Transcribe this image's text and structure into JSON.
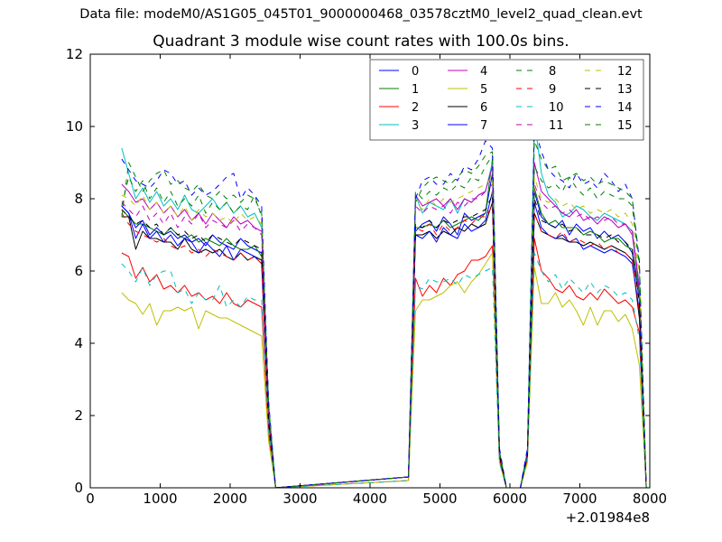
{
  "suptitle": "Data file: modeM0/AS1G05_045T01_9000000468_03578cztM0_level2_quad_clean.evt",
  "chart_data": {
    "type": "line",
    "title": "Quadrant 3 module wise count rates with 100.0s bins.",
    "xlabel": "",
    "ylabel": "",
    "x_offset_label": "+2.01984e8",
    "xlim": [
      0,
      8000
    ],
    "ylim": [
      0,
      12
    ],
    "xticks": [
      "0",
      "1000",
      "2000",
      "3000",
      "4000",
      "5000",
      "6000",
      "7000",
      "8000"
    ],
    "yticks": [
      "0",
      "2",
      "4",
      "6",
      "8",
      "10",
      "12"
    ],
    "grid": false,
    "legend_position": "upper right",
    "legend_columns": 4,
    "x": [
      450,
      550,
      650,
      750,
      850,
      950,
      1050,
      1150,
      1250,
      1350,
      1450,
      1550,
      1650,
      1750,
      1850,
      1950,
      2050,
      2150,
      2250,
      2350,
      2450,
      2550,
      2650,
      4550,
      4650,
      4750,
      4850,
      4950,
      5050,
      5150,
      5250,
      5350,
      5450,
      5550,
      5650,
      5750,
      5850,
      5950,
      6050,
      6150,
      6250,
      6350,
      6450,
      6550,
      6650,
      6750,
      6850,
      6950,
      7050,
      7150,
      7250,
      7350,
      7450,
      7550,
      7650,
      7750,
      7850,
      7950
    ],
    "series": [
      {
        "name": "0",
        "color": "#0000ff",
        "style": "solid",
        "values": [
          7.8,
          7.6,
          7.2,
          7.4,
          7.0,
          7.2,
          7.0,
          7.1,
          6.9,
          7.0,
          6.8,
          6.9,
          6.7,
          7.0,
          6.8,
          6.7,
          6.6,
          6.9,
          6.7,
          6.6,
          6.5,
          1.8,
          0,
          0.3,
          7.1,
          7.3,
          7.4,
          7.1,
          7.5,
          7.3,
          7.0,
          7.6,
          7.4,
          7.5,
          7.6,
          8.7,
          0.9,
          0,
          0,
          0,
          0.9,
          8.2,
          7.5,
          7.3,
          7.2,
          7.4,
          7.0,
          7.3,
          7.1,
          7.2,
          6.9,
          7.1,
          6.9,
          7.0,
          6.8,
          6.5,
          5.2,
          0
        ]
      },
      {
        "name": "1",
        "color": "#008000",
        "style": "solid",
        "values": [
          7.7,
          7.5,
          7.3,
          7.3,
          7.2,
          7.1,
          7.0,
          7.2,
          7.0,
          6.9,
          7.0,
          6.8,
          6.9,
          6.8,
          6.7,
          6.9,
          6.7,
          6.6,
          6.6,
          6.7,
          6.4,
          2.0,
          0,
          0.3,
          7.2,
          7.2,
          7.3,
          7.2,
          7.4,
          7.2,
          7.3,
          7.4,
          7.5,
          7.4,
          7.6,
          9.1,
          1.0,
          0,
          0,
          0,
          0.9,
          8.3,
          7.6,
          7.3,
          7.4,
          7.2,
          7.2,
          7.2,
          7.0,
          7.1,
          7.0,
          6.8,
          6.9,
          6.9,
          6.7,
          6.6,
          5.4,
          0
        ]
      },
      {
        "name": "2",
        "color": "#ff0000",
        "style": "solid",
        "values": [
          6.5,
          6.4,
          5.8,
          6.1,
          5.7,
          5.9,
          5.5,
          5.6,
          5.4,
          5.6,
          5.3,
          5.4,
          5.2,
          5.3,
          5.1,
          5.4,
          5.1,
          5.0,
          5.2,
          5.1,
          5.0,
          1.5,
          0,
          0.2,
          5.8,
          5.3,
          5.6,
          5.4,
          5.8,
          5.6,
          5.9,
          6.0,
          6.3,
          6.3,
          6.4,
          6.7,
          0.8,
          0,
          0,
          0,
          0.8,
          6.9,
          6.0,
          5.8,
          5.5,
          5.4,
          5.6,
          5.3,
          5.2,
          5.4,
          5.2,
          5.5,
          5.3,
          5.1,
          5.2,
          5.0,
          4.3,
          0
        ]
      },
      {
        "name": "3",
        "color": "#00bfbf",
        "style": "solid",
        "values": [
          9.4,
          8.7,
          8.0,
          8.3,
          7.9,
          8.2,
          7.8,
          8.0,
          7.7,
          8.1,
          7.7,
          7.6,
          7.8,
          8.0,
          7.7,
          7.9,
          7.6,
          7.8,
          7.5,
          7.6,
          7.2,
          2.3,
          0,
          0.3,
          8.1,
          7.6,
          7.9,
          7.8,
          7.7,
          8.0,
          7.6,
          8.0,
          7.9,
          8.1,
          8.2,
          9.0,
          1.0,
          0,
          0,
          0,
          1.0,
          10.2,
          8.7,
          8.1,
          7.9,
          7.5,
          7.6,
          7.8,
          7.7,
          7.5,
          7.4,
          7.6,
          7.5,
          7.4,
          7.3,
          7.1,
          5.6,
          0
        ]
      },
      {
        "name": "4",
        "color": "#bf00bf",
        "style": "solid",
        "values": [
          8.4,
          8.2,
          7.9,
          8.0,
          7.7,
          7.9,
          7.6,
          7.8,
          7.5,
          7.7,
          7.4,
          7.6,
          7.3,
          7.6,
          7.4,
          7.2,
          7.5,
          7.3,
          7.4,
          7.2,
          7.1,
          2.1,
          0,
          0.3,
          8.1,
          7.8,
          7.9,
          8.0,
          7.8,
          8.0,
          7.7,
          8.0,
          7.9,
          8.1,
          8.2,
          8.9,
          1.0,
          0,
          0,
          0,
          1.0,
          9.0,
          8.2,
          8.0,
          7.8,
          7.6,
          7.5,
          7.7,
          7.4,
          7.5,
          7.3,
          7.5,
          7.4,
          7.2,
          7.3,
          7.0,
          5.5,
          0
        ]
      },
      {
        "name": "5",
        "color": "#bfbf00",
        "style": "solid",
        "values": [
          5.4,
          5.2,
          5.1,
          4.8,
          5.1,
          4.5,
          4.9,
          4.9,
          5.0,
          4.9,
          5.0,
          4.4,
          4.9,
          4.8,
          4.7,
          4.7,
          4.6,
          4.5,
          4.4,
          4.3,
          4.2,
          1.3,
          0,
          0.2,
          4.9,
          5.2,
          5.2,
          5.3,
          5.4,
          5.6,
          5.7,
          5.4,
          5.7,
          5.9,
          6.2,
          6.5,
          0.7,
          0,
          0,
          0,
          0.7,
          6.1,
          5.1,
          5.1,
          5.4,
          5.0,
          5.2,
          4.9,
          4.5,
          5.0,
          4.5,
          4.9,
          4.9,
          4.6,
          4.8,
          4.4,
          3.4,
          0
        ]
      },
      {
        "name": "6",
        "color": "#000000",
        "style": "solid",
        "values": [
          7.5,
          7.5,
          6.6,
          7.1,
          6.9,
          6.9,
          6.8,
          6.8,
          6.6,
          6.9,
          6.6,
          6.5,
          6.6,
          6.5,
          6.6,
          6.4,
          6.3,
          6.5,
          6.3,
          6.4,
          6.3,
          1.8,
          0,
          0.3,
          7.0,
          7.0,
          7.1,
          6.9,
          7.1,
          7.0,
          7.2,
          7.1,
          7.3,
          7.2,
          7.3,
          7.9,
          0.9,
          0,
          0,
          0,
          0.9,
          7.6,
          7.1,
          7.0,
          6.9,
          6.9,
          6.8,
          6.8,
          6.7,
          6.8,
          6.7,
          6.6,
          6.7,
          6.6,
          6.5,
          6.3,
          4.7,
          0
        ]
      },
      {
        "name": "7",
        "color": "#0000ff",
        "style": "solid",
        "values": [
          7.8,
          7.6,
          6.9,
          7.3,
          6.9,
          7.1,
          6.8,
          7.0,
          6.7,
          6.9,
          6.8,
          6.5,
          6.8,
          6.6,
          6.4,
          6.7,
          6.3,
          6.6,
          6.5,
          6.4,
          6.2,
          1.8,
          0,
          0.3,
          7.0,
          6.9,
          7.1,
          6.8,
          7.2,
          7.0,
          6.9,
          7.3,
          7.1,
          7.2,
          7.4,
          8.2,
          0.9,
          0,
          0,
          0,
          0.9,
          7.9,
          7.2,
          7.0,
          6.9,
          7.0,
          6.8,
          6.9,
          6.6,
          6.7,
          6.6,
          6.5,
          6.6,
          6.5,
          6.4,
          6.2,
          4.9,
          0
        ]
      },
      {
        "name": "8",
        "color": "#008000",
        "style": "dashed",
        "values": [
          7.8,
          8.6,
          8.2,
          8.5,
          8.0,
          8.3,
          7.9,
          8.2,
          7.8,
          8.0,
          7.8,
          8.1,
          7.6,
          7.9,
          7.7,
          7.9,
          7.6,
          7.8,
          7.7,
          8.1,
          7.5,
          2.3,
          0,
          0.3,
          8.2,
          8.0,
          8.2,
          8.1,
          8.3,
          8.2,
          8.4,
          8.3,
          8.6,
          8.5,
          8.9,
          9.2,
          1.0,
          0,
          0,
          0,
          1.0,
          8.9,
          8.5,
          8.3,
          8.4,
          8.2,
          8.6,
          8.3,
          8.1,
          8.3,
          8.0,
          8.2,
          8.1,
          8.0,
          8.0,
          7.8,
          6.1,
          0
        ]
      },
      {
        "name": "9",
        "color": "#ff0000",
        "style": "dashed",
        "values": [
          7.6,
          7.3,
          7.1,
          7.0,
          6.9,
          6.8,
          6.9,
          6.7,
          6.6,
          6.7,
          6.5,
          6.6,
          6.4,
          6.6,
          6.5,
          6.4,
          6.3,
          6.5,
          6.3,
          6.4,
          6.2,
          1.8,
          0,
          0.3,
          7.2,
          7.1,
          7.3,
          7.0,
          7.3,
          7.1,
          7.2,
          7.4,
          7.3,
          7.5,
          7.5,
          7.8,
          0.9,
          0,
          0,
          0,
          0.9,
          7.6,
          7.1,
          7.0,
          6.9,
          7.1,
          6.8,
          6.9,
          6.8,
          6.7,
          6.8,
          6.6,
          6.7,
          6.5,
          6.5,
          6.3,
          4.9,
          0
        ]
      },
      {
        "name": "10",
        "color": "#00bfbf",
        "style": "dashed",
        "values": [
          6.2,
          6.0,
          5.7,
          6.1,
          5.6,
          5.9,
          6.0,
          6.0,
          5.4,
          5.5,
          5.1,
          5.4,
          5.2,
          5.2,
          5.6,
          5.0,
          5.2,
          5.0,
          5.3,
          5.2,
          5.2,
          1.6,
          0,
          0.2,
          5.6,
          5.5,
          5.8,
          5.7,
          5.7,
          5.8,
          5.6,
          5.9,
          5.8,
          5.9,
          6.0,
          6.1,
          0.7,
          0,
          0,
          0,
          0.8,
          6.5,
          6.0,
          5.7,
          5.9,
          5.5,
          5.8,
          5.6,
          5.4,
          5.7,
          5.4,
          5.6,
          5.5,
          5.3,
          5.4,
          5.2,
          4.1,
          0
        ]
      },
      {
        "name": "11",
        "color": "#bf00bf",
        "style": "dashed",
        "values": [
          7.9,
          7.7,
          7.5,
          7.8,
          7.4,
          7.6,
          7.3,
          7.6,
          7.2,
          7.5,
          7.3,
          7.6,
          7.2,
          7.4,
          7.3,
          7.2,
          7.4,
          7.1,
          7.3,
          7.2,
          7.0,
          2.1,
          0,
          0.3,
          7.8,
          7.6,
          7.8,
          7.7,
          7.8,
          7.6,
          7.9,
          7.8,
          8.0,
          8.0,
          8.2,
          8.4,
          1.0,
          0,
          0,
          0,
          1.0,
          8.4,
          7.9,
          7.7,
          7.8,
          7.6,
          7.7,
          7.5,
          7.6,
          7.4,
          7.5,
          7.4,
          7.5,
          7.3,
          7.3,
          7.1,
          5.6,
          0
        ]
      },
      {
        "name": "12",
        "color": "#bfbf00",
        "style": "dashed",
        "values": [
          8.1,
          8.0,
          7.8,
          8.1,
          7.7,
          7.9,
          7.6,
          7.8,
          7.5,
          7.8,
          7.4,
          7.7,
          7.5,
          7.6,
          7.4,
          7.5,
          7.3,
          7.6,
          7.4,
          7.5,
          7.3,
          2.2,
          0,
          0.3,
          7.9,
          7.7,
          8.0,
          7.8,
          8.0,
          7.9,
          8.0,
          8.1,
          8.2,
          8.3,
          8.4,
          8.6,
          1.0,
          0,
          0,
          0,
          1.0,
          8.6,
          8.0,
          7.9,
          8.0,
          7.8,
          7.9,
          7.7,
          7.8,
          7.6,
          7.7,
          7.6,
          7.7,
          7.5,
          7.6,
          7.3,
          5.9,
          0
        ]
      },
      {
        "name": "13",
        "color": "#000000",
        "style": "dashed",
        "values": [
          7.7,
          7.5,
          7.3,
          7.4,
          7.2,
          7.3,
          7.0,
          7.2,
          7.0,
          7.1,
          6.9,
          7.0,
          6.8,
          7.0,
          6.9,
          6.8,
          6.7,
          6.9,
          6.8,
          6.7,
          6.6,
          1.9,
          0,
          0.3,
          7.3,
          7.2,
          7.4,
          7.2,
          7.4,
          7.3,
          7.4,
          7.5,
          7.5,
          7.6,
          7.7,
          8.1,
          0.9,
          0,
          0,
          0,
          0.9,
          8.0,
          7.4,
          7.3,
          7.2,
          7.3,
          7.1,
          7.2,
          7.0,
          7.0,
          7.0,
          6.9,
          7.0,
          6.8,
          6.8,
          6.6,
          5.1,
          0
        ]
      },
      {
        "name": "14",
        "color": "#0000ff",
        "style": "dashed",
        "values": [
          9.1,
          8.8,
          8.5,
          8.4,
          8.3,
          8.5,
          8.8,
          8.7,
          8.4,
          8.5,
          8.1,
          8.3,
          8.1,
          8.2,
          8.4,
          8.6,
          8.7,
          8.0,
          8.3,
          8.1,
          7.8,
          2.4,
          0,
          0.3,
          8.0,
          8.5,
          8.6,
          8.4,
          8.4,
          8.7,
          8.5,
          8.9,
          8.8,
          9.1,
          9.6,
          9.4,
          1.1,
          0,
          0,
          0,
          1.1,
          10.0,
          9.3,
          8.8,
          8.6,
          8.5,
          8.3,
          8.7,
          8.4,
          8.5,
          8.3,
          8.7,
          8.5,
          8.2,
          8.4,
          8.0,
          6.3,
          0
        ]
      },
      {
        "name": "15",
        "color": "#008000",
        "style": "dashed",
        "values": [
          7.5,
          9.0,
          8.6,
          8.2,
          8.5,
          8.7,
          8.8,
          8.4,
          8.5,
          8.3,
          8.2,
          8.4,
          8.1,
          8.0,
          8.2,
          8.0,
          8.1,
          7.9,
          8.1,
          8.0,
          7.6,
          2.3,
          0,
          0.3,
          7.9,
          8.3,
          8.5,
          8.6,
          8.5,
          8.4,
          8.6,
          8.8,
          8.7,
          8.9,
          9.2,
          9.3,
          1.0,
          0,
          0,
          0,
          1.0,
          9.6,
          9.1,
          8.8,
          8.9,
          8.5,
          8.6,
          8.7,
          8.5,
          8.6,
          8.4,
          8.5,
          8.4,
          8.3,
          8.2,
          8.0,
          6.2,
          0
        ]
      }
    ]
  }
}
